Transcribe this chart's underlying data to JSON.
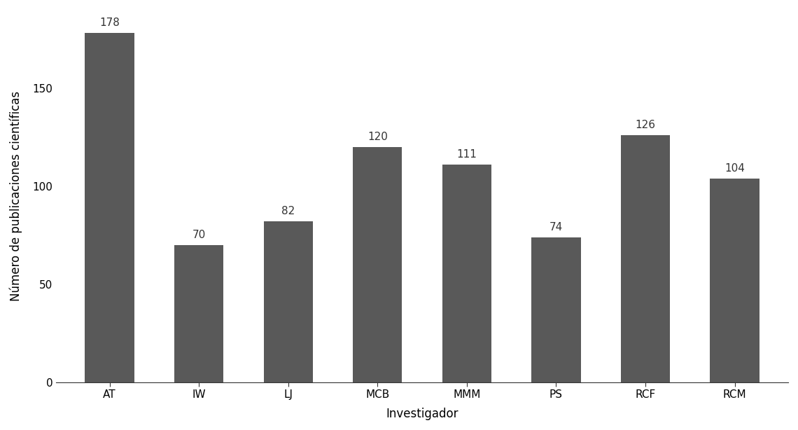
{
  "categories": [
    "AT",
    "IW",
    "LJ",
    "MCB",
    "MMM",
    "PS",
    "RCF",
    "RCM"
  ],
  "values": [
    178,
    70,
    82,
    120,
    111,
    74,
    126,
    104
  ],
  "bar_color": "#595959",
  "xlabel": "Investigador",
  "ylabel": "Número de publicaciones científicas",
  "ylim": [
    0,
    190
  ],
  "yticks": [
    0,
    50,
    100,
    150
  ],
  "label_fontsize": 12,
  "tick_fontsize": 11,
  "annotation_fontsize": 11,
  "background_color": "#ffffff",
  "bar_width": 0.55
}
